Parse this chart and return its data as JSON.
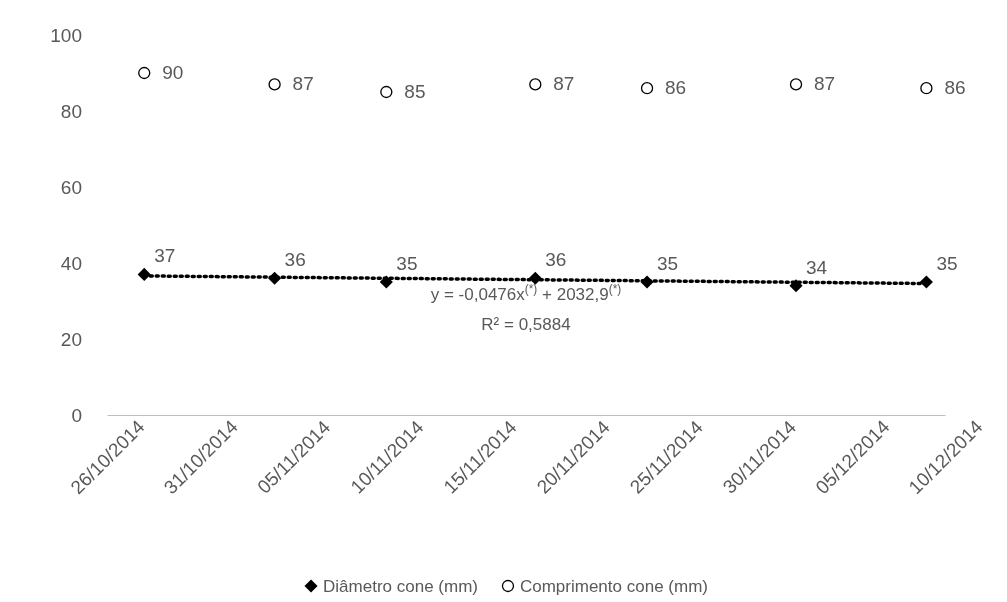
{
  "chart_data": {
    "type": "scatter",
    "x": [
      "2014-10-28",
      "2014-11-04",
      "2014-11-10",
      "2014-11-18",
      "2014-11-24",
      "2014-12-02",
      "2014-12-09"
    ],
    "series": [
      {
        "name": "Diâmetro  cone (mm)",
        "color": "#000000",
        "marker": "diamond",
        "values": [
          37,
          36,
          35,
          36,
          35,
          34,
          35
        ],
        "value_labels": [
          "37",
          "36",
          "35",
          "36",
          "35",
          "34",
          "35"
        ]
      },
      {
        "name": "Comprimento cone (mm)",
        "color": "#000000",
        "marker": "circle",
        "values": [
          90,
          87,
          85,
          87,
          86,
          87,
          86
        ],
        "value_labels": [
          "90",
          "87",
          "85",
          "87",
          "86",
          "87",
          "86"
        ]
      },
      {
        "type": "line",
        "color": "#000000",
        "line_style": "dotted",
        "marker": "none",
        "x": [
          "2014-10-28",
          "2014-12-09"
        ],
        "values": [
          36.6,
          34.6
        ]
      }
    ],
    "xlim": [
      "2014-10-26",
      "2014-12-10"
    ],
    "xticks": [
      {
        "value": "2014-10-26",
        "label": "26/10/2014"
      },
      {
        "value": "2014-10-31",
        "label": "31/10/2014"
      },
      {
        "value": "2014-11-05",
        "label": "05/11/2014"
      },
      {
        "value": "2014-11-10",
        "label": "10/11/2014"
      },
      {
        "value": "2014-11-15",
        "label": "15/11/2014"
      },
      {
        "value": "2014-11-20",
        "label": "20/11/2014"
      },
      {
        "value": "2014-11-25",
        "label": "25/11/2014"
      },
      {
        "value": "2014-11-30",
        "label": "30/11/2014"
      },
      {
        "value": "2014-12-05",
        "label": "05/12/2014"
      },
      {
        "value": "2014-12-10",
        "label": "10/12/2014"
      }
    ],
    "ylim": [
      0,
      100
    ],
    "yticks": [
      0,
      20,
      40,
      60,
      80,
      100
    ],
    "legend": "bottom",
    "annotations": [
      "y = -0,0476x$^{(*)}$ + 2032,9$^{(*)}$",
      "R² = 0,5884"
    ]
  }
}
